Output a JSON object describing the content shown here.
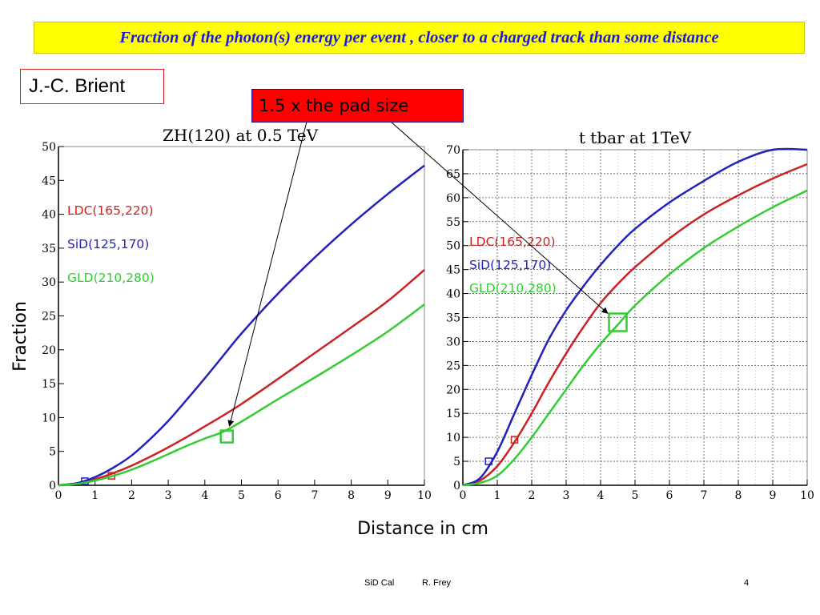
{
  "slide": {
    "title": "Fraction of the photon(s) energy per event , closer to a charged track than some distance",
    "author": "J.-C. Brient",
    "annotation": "1.5 x the pad size",
    "xlabel": "Distance in cm",
    "ylabel": "Fraction",
    "footer_left": "SiD Cal",
    "footer_author": "R. Frey",
    "page_number": "4",
    "colors": {
      "title_bg": "#ffff00",
      "title_text": "#1a1ad8",
      "annotation_bg": "#ff0000"
    }
  },
  "chart_data": [
    {
      "type": "line",
      "title": "ZH(120) at 0.5 TeV",
      "xlim": [
        0,
        10
      ],
      "ylim": [
        0,
        50
      ],
      "xticks": [
        0,
        1,
        2,
        3,
        4,
        5,
        6,
        7,
        8,
        9,
        10
      ],
      "yticks": [
        0,
        5,
        10,
        15,
        20,
        25,
        30,
        35,
        40,
        45,
        50
      ],
      "grid": false,
      "legend_placement": "top-left",
      "series": [
        {
          "name": "LDC(165,220)",
          "color": "#cc2222",
          "x": [
            0,
            0.5,
            1,
            1.5,
            2,
            2.5,
            3,
            3.5,
            4,
            4.5,
            5,
            6,
            7,
            8,
            9,
            10
          ],
          "y": [
            0,
            0.3,
            0.9,
            1.8,
            2.9,
            4.2,
            5.6,
            7.1,
            8.7,
            10.3,
            12.0,
            15.7,
            19.5,
            23.3,
            27.2,
            31.8
          ],
          "marker": {
            "x": 1.45,
            "y": 1.4
          }
        },
        {
          "name": "SiD(125,170)",
          "color": "#2222bb",
          "x": [
            0,
            0.5,
            1,
            1.5,
            2,
            2.5,
            3,
            3.5,
            4,
            4.5,
            5,
            6,
            7,
            8,
            9,
            10
          ],
          "y": [
            0,
            0.3,
            1.2,
            2.6,
            4.4,
            6.8,
            9.5,
            12.6,
            15.8,
            19.1,
            22.4,
            28.3,
            33.6,
            38.5,
            43.0,
            47.2
          ],
          "marker": {
            "x": 0.72,
            "y": 0.6
          }
        },
        {
          "name": "GLD(210,280)",
          "color": "#33cc33",
          "x": [
            0,
            0.5,
            1,
            1.5,
            2,
            2.5,
            3,
            3.5,
            4,
            4.5,
            5,
            6,
            7,
            8,
            9,
            10
          ],
          "y": [
            0,
            0.2,
            0.7,
            1.4,
            2.3,
            3.4,
            4.6,
            5.8,
            6.9,
            7.9,
            9.4,
            12.7,
            15.9,
            19.2,
            22.7,
            26.7
          ],
          "marker": {
            "x": 4.6,
            "y": 7.2
          }
        }
      ]
    },
    {
      "type": "line",
      "title": "t tbar at 1TeV",
      "xlim": [
        0,
        10
      ],
      "ylim": [
        0,
        70
      ],
      "xticks": [
        0,
        1,
        2,
        3,
        4,
        5,
        6,
        7,
        8,
        9,
        10
      ],
      "yticks": [
        0,
        5,
        10,
        15,
        20,
        25,
        30,
        35,
        40,
        45,
        50,
        55,
        60,
        65,
        70
      ],
      "grid": true,
      "legend_placement": "top-left",
      "series": [
        {
          "name": "LDC(165,220)",
          "color": "#cc2222",
          "x": [
            0,
            0.5,
            1,
            1.5,
            2,
            2.5,
            3,
            3.5,
            4,
            4.5,
            5,
            6,
            7,
            8,
            9,
            10
          ],
          "y": [
            0,
            1,
            4,
            9,
            15,
            21.5,
            27.5,
            33,
            38,
            42,
            45.5,
            51.5,
            56.5,
            60.5,
            64,
            67
          ],
          "marker": {
            "x": 1.5,
            "y": 9.5
          }
        },
        {
          "name": "SiD(125,170)",
          "color": "#2222bb",
          "x": [
            0,
            0.5,
            1,
            1.5,
            2,
            2.5,
            3,
            3.5,
            4,
            4.5,
            5,
            6,
            7,
            8,
            9,
            10
          ],
          "y": [
            0,
            1.5,
            7,
            15,
            23,
            30.5,
            36.5,
            41.5,
            46,
            50,
            53.5,
            59,
            63.5,
            67.5,
            70,
            70
          ],
          "marker": {
            "x": 0.75,
            "y": 5
          }
        },
        {
          "name": "GLD(210,280)",
          "color": "#33cc33",
          "x": [
            0,
            0.5,
            1,
            1.5,
            2,
            2.5,
            3,
            3.5,
            4,
            4.5,
            5,
            6,
            7,
            8,
            9,
            10
          ],
          "y": [
            0,
            0.5,
            2,
            5.5,
            10,
            15,
            20,
            25,
            29.5,
            33.5,
            37.5,
            44,
            49.5,
            54,
            58,
            61.5
          ],
          "marker": {
            "x": 4.5,
            "y": 34
          }
        }
      ]
    }
  ]
}
